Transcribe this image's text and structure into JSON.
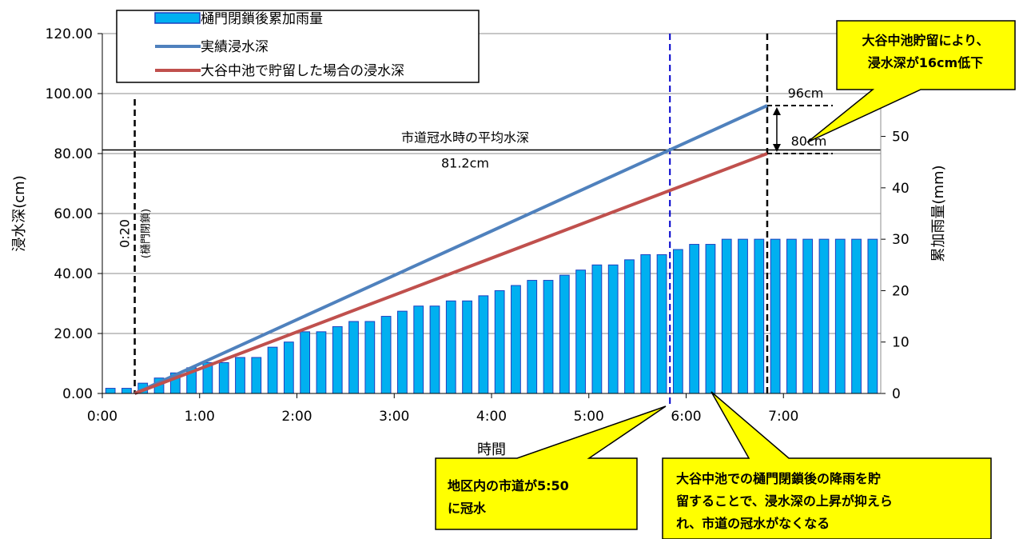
{
  "chart_data": {
    "type": "bar",
    "title": "",
    "xlabel": "時間",
    "ylabel": "浸水深(cm)",
    "y2label": "累加雨量(mm)",
    "x_ticks": [
      "0:00",
      "1:00",
      "2:00",
      "3:00",
      "4:00",
      "5:00",
      "6:00",
      "7:00"
    ],
    "x_unit": "hours",
    "xlim": [
      0,
      8
    ],
    "ylim": [
      0,
      120
    ],
    "y2lim": [
      0,
      70
    ],
    "y_ticks": [
      "0.00",
      "20.00",
      "40.00",
      "60.00",
      "80.00",
      "100.00",
      "120.00"
    ],
    "y2_ticks": [
      "0",
      "10",
      "20",
      "30",
      "40",
      "50",
      "60"
    ],
    "grid": true,
    "legend_position": "top-left",
    "series": [
      {
        "name": "樋門閉鎖後累加雨量",
        "type": "bar",
        "axis": "right",
        "color": "#00b0f0",
        "x": [
          "0:00",
          "0:10",
          "0:20",
          "0:30",
          "0:40",
          "0:50",
          "1:00",
          "1:10",
          "1:20",
          "1:30",
          "1:40",
          "1:50",
          "2:00",
          "2:10",
          "2:20",
          "2:30",
          "2:40",
          "2:50",
          "3:00",
          "3:10",
          "3:20",
          "3:30",
          "3:40",
          "3:50",
          "4:00",
          "4:10",
          "4:20",
          "4:30",
          "4:40",
          "4:50",
          "5:00",
          "5:10",
          "5:20",
          "5:30",
          "5:40",
          "5:50",
          "6:00",
          "6:10",
          "6:20",
          "6:30",
          "6:40",
          "6:50",
          "7:00",
          "7:10",
          "7:20",
          "7:30",
          "7:40",
          "7:50"
        ],
        "values": [
          1,
          1,
          2,
          3,
          4,
          5,
          6,
          6,
          7,
          7,
          9,
          10,
          12,
          12,
          13,
          14,
          14,
          15,
          16,
          17,
          17,
          18,
          18,
          19,
          20,
          21,
          22,
          22,
          23,
          24,
          25,
          25,
          26,
          27,
          27,
          28,
          29,
          29,
          30,
          30,
          30,
          30,
          30,
          30,
          30,
          30,
          30,
          30
        ]
      },
      {
        "name": "実績浸水深",
        "type": "line",
        "axis": "left",
        "color": "#4f81bd",
        "x": [
          "0:20",
          "6:50"
        ],
        "values": [
          0,
          96
        ]
      },
      {
        "name": "大谷中池で貯留した場合の浸水深",
        "type": "line",
        "axis": "left",
        "color": "#c0504d",
        "x": [
          "0:20",
          "6:50"
        ],
        "values": [
          0,
          80
        ]
      }
    ],
    "annotations": {
      "gate_close_time": "0:20",
      "gate_close_note": "(樋門閉鎖)",
      "avg_depth_label": "市道冠水時の平均水深",
      "avg_depth_value": "81.2cm",
      "avg_depth_level": 81.2,
      "flood_time": "5:50",
      "end_time": "6:50",
      "label_96": "96cm",
      "label_80": "80cm"
    },
    "callouts": {
      "top_right_lines": [
        "大谷中池貯留により、",
        "浸水深が16cm低下"
      ],
      "bottom_left_lines": [
        "地区内の市道が5:50",
        "に冠水"
      ],
      "bottom_right_lines": [
        "大谷中池での樋門閉鎖後の降雨を貯",
        "留することで、浸水深の上昇が抑えら",
        "れ、市道の冠水がなくなる"
      ]
    },
    "colors": {
      "bar_fill": "#00b0f0",
      "bar_stroke": "#1f3fbf",
      "callout_fill": "#ffff00",
      "flood_line": "#0000cc"
    }
  }
}
